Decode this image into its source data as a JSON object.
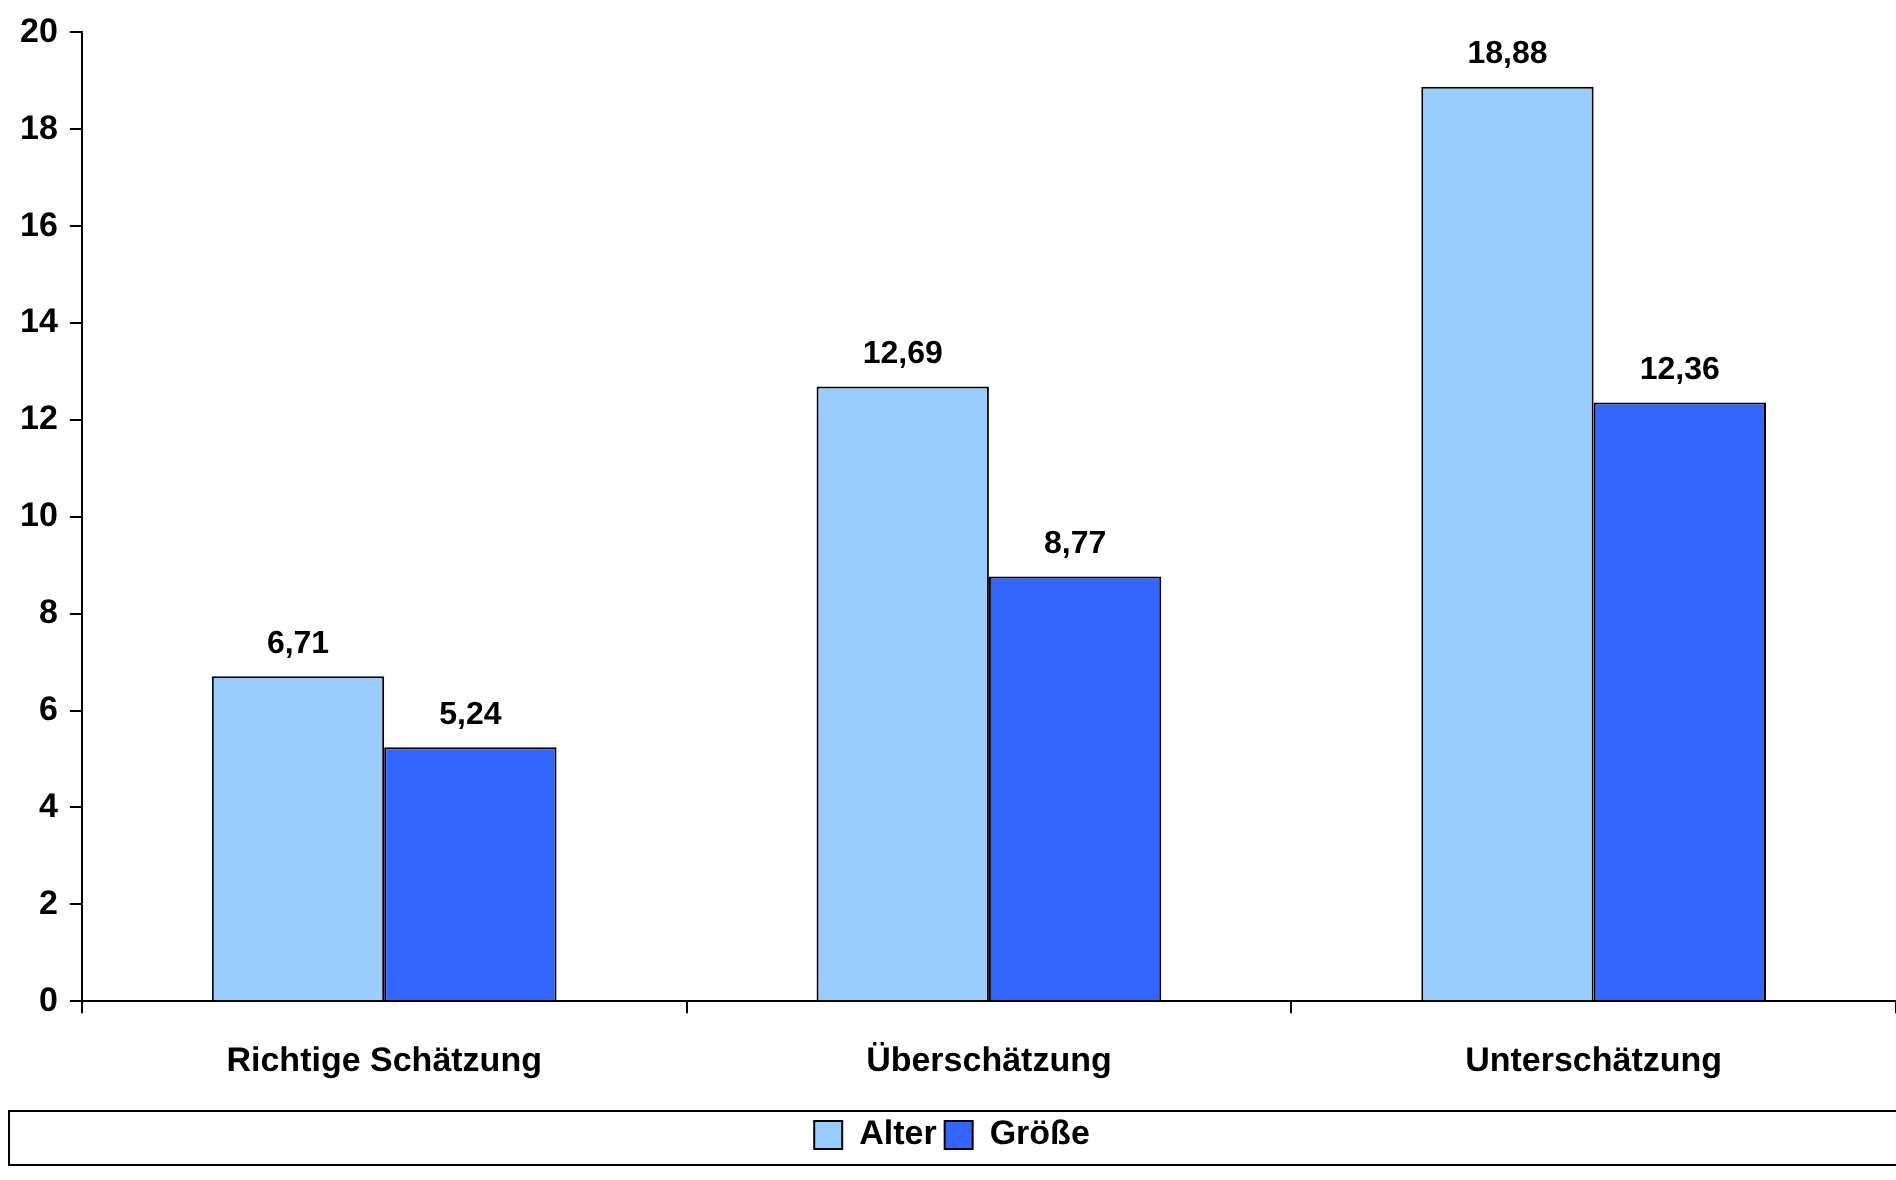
{
  "chart_data": {
    "type": "bar",
    "categories": [
      "Richtige Schätzung",
      "Überschätzung",
      "Unterschätzung"
    ],
    "series": [
      {
        "name": "Alter",
        "color": "#99ccff",
        "values": [
          6.71,
          12.69,
          18.88
        ],
        "value_labels": [
          "6,71",
          "12,69",
          "18,88"
        ]
      },
      {
        "name": "Größe",
        "color": "#3366ff",
        "values": [
          5.24,
          8.77,
          12.36
        ],
        "value_labels": [
          "5,24",
          "8,77",
          "12,36"
        ]
      }
    ],
    "ylim": [
      0,
      20
    ],
    "yticks": [
      0,
      2,
      4,
      6,
      8,
      10,
      12,
      14,
      16,
      18,
      20
    ],
    "grid": false,
    "legend": "bottom"
  }
}
